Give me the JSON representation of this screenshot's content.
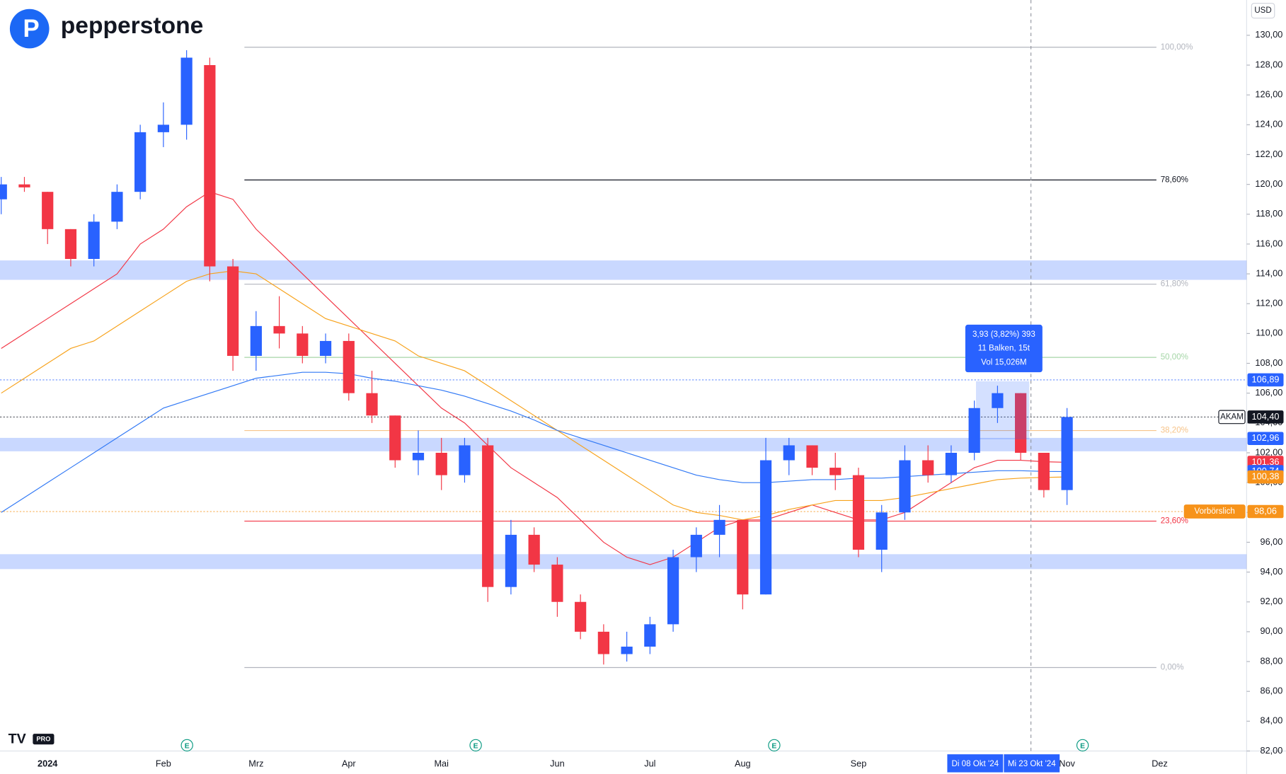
{
  "brand": "pepperstone",
  "currency": "USD",
  "platform_badge": "PRO",
  "chart_data": {
    "type": "candlestick",
    "symbol": "AKAM",
    "categories": [
      null,
      null,
      "2024",
      null,
      null,
      null,
      null,
      "Feb",
      null,
      null,
      null,
      "Mrz",
      null,
      null,
      null,
      "Apr",
      null,
      null,
      null,
      "Mai",
      null,
      null,
      null,
      null,
      "Jun",
      null,
      null,
      null,
      "Jul",
      null,
      null,
      null,
      "Aug",
      null,
      null,
      null,
      null,
      "Sep",
      null,
      null,
      null,
      null,
      null,
      null,
      null,
      null,
      "Nov",
      null,
      null,
      null,
      "Dez",
      null,
      null,
      null
    ],
    "open": [
      119,
      120,
      119.5,
      117,
      115,
      117.5,
      119.5,
      123.5,
      124,
      128,
      114.5,
      108.5,
      110.5,
      110,
      108.5,
      109.5,
      106,
      104.5,
      101.5,
      102,
      100.5,
      102.5,
      93,
      96.5,
      94.5,
      92,
      90,
      88.5,
      89,
      90.5,
      95,
      96.5,
      97.5,
      92.5,
      101.5,
      102.5,
      101,
      100.5,
      95.5,
      98,
      101.5,
      100.5,
      102,
      105,
      106,
      102,
      99.5,
      null,
      null,
      null,
      null,
      null,
      null,
      null
    ],
    "high": [
      120.5,
      120.5,
      119.5,
      117,
      118,
      120,
      124,
      125.5,
      129,
      128.5,
      115,
      111.5,
      112.5,
      110.5,
      110,
      110,
      107.5,
      104.5,
      103.5,
      103,
      103,
      103,
      97.5,
      97,
      95,
      92.5,
      90.5,
      90,
      91,
      95.5,
      97,
      98.5,
      97.5,
      103,
      103,
      102.5,
      102,
      101,
      98.5,
      102.5,
      102.5,
      102.5,
      105.5,
      106.5,
      106,
      102,
      105,
      null,
      null,
      null,
      null,
      null,
      null,
      null
    ],
    "low": [
      118,
      119.5,
      116,
      114.5,
      114.5,
      117,
      119,
      122.5,
      123,
      113.5,
      107.5,
      107.5,
      109,
      108,
      108,
      105.5,
      104,
      101,
      100.5,
      99.5,
      100,
      92,
      92.5,
      94,
      91,
      89.5,
      87.8,
      88,
      88.5,
      90,
      94,
      95,
      91.5,
      92.5,
      100.5,
      100.5,
      99.5,
      95,
      94,
      97.5,
      100,
      100,
      101.5,
      104,
      101.5,
      99,
      98.5,
      null,
      null,
      null,
      null,
      null,
      null,
      null
    ],
    "close": [
      120,
      119.8,
      117,
      115,
      117.5,
      119.5,
      123.5,
      124,
      128.5,
      114.5,
      108.5,
      110.5,
      110,
      108.5,
      109.5,
      106,
      104.5,
      101.5,
      102,
      100.5,
      102.5,
      93,
      96.5,
      94.5,
      92,
      90,
      88.5,
      89,
      90.5,
      95,
      96.5,
      97.5,
      92.5,
      101.5,
      102.5,
      101,
      100.5,
      95.5,
      98,
      101.5,
      100.5,
      102,
      105,
      106,
      102,
      99.5,
      104.4,
      null,
      null,
      null,
      null,
      null,
      null,
      null
    ],
    "up_color": "#2962ff",
    "down_color": "#f23645",
    "series": [
      {
        "color": "#f23645",
        "values": [
          109,
          110,
          111,
          112,
          113,
          114,
          116,
          117,
          118.5,
          119.5,
          119,
          117,
          115.5,
          114,
          112.5,
          111,
          109.5,
          108,
          106.5,
          105,
          104,
          102.5,
          101,
          100,
          99,
          97.5,
          96,
          95,
          94.5,
          95,
          96,
          97,
          97.5,
          97.5,
          98,
          98.5,
          98,
          97.5,
          97.5,
          98,
          99,
          100,
          101,
          101.5,
          101.5,
          101.4,
          101.36,
          null,
          null,
          null,
          null,
          null,
          null,
          null
        ]
      },
      {
        "color": "#f7a21b",
        "values": [
          106,
          107,
          108,
          109,
          109.5,
          110.5,
          111.5,
          112.5,
          113.5,
          114,
          114.2,
          114,
          113,
          112,
          111,
          110.5,
          110,
          109.5,
          108.5,
          108,
          107.5,
          106.5,
          105.5,
          104.5,
          103.5,
          102.5,
          101.5,
          100.5,
          99.5,
          98.5,
          98,
          97.8,
          97.5,
          97.8,
          98.2,
          98.5,
          98.8,
          98.8,
          98.8,
          99,
          99.3,
          99.6,
          99.9,
          100.2,
          100.3,
          100.35,
          100.38,
          null,
          null,
          null,
          null,
          null,
          null,
          null
        ]
      },
      {
        "color": "#3179f5",
        "values": [
          98,
          99,
          100,
          101,
          102,
          103,
          104,
          105,
          105.5,
          106,
          106.5,
          107,
          107.2,
          107.4,
          107.4,
          107.3,
          107,
          106.8,
          106.5,
          106.2,
          105.8,
          105.3,
          104.8,
          104.2,
          103.5,
          103,
          102.5,
          102,
          101.5,
          101,
          100.5,
          100.2,
          100,
          100,
          100.1,
          100.2,
          100.2,
          100.3,
          100.3,
          100.4,
          100.5,
          100.6,
          100.7,
          100.8,
          100.8,
          100.75,
          100.74,
          null,
          null,
          null,
          null,
          null,
          null,
          null
        ]
      }
    ],
    "ylim": [
      81.5,
      131
    ],
    "yticks": [
      {
        "value": 82,
        "label": "82,00"
      },
      {
        "value": 84,
        "label": "84,00"
      },
      {
        "value": 86,
        "label": "86,00"
      },
      {
        "value": 88,
        "label": "88,00"
      },
      {
        "value": 90,
        "label": "90,00"
      },
      {
        "value": 92,
        "label": "92,00"
      },
      {
        "value": 94,
        "label": "94,00"
      },
      {
        "value": 96,
        "label": "96,00"
      },
      {
        "value": 98,
        "label": "98,00"
      },
      {
        "value": 100,
        "label": "100,00"
      },
      {
        "value": 102,
        "label": "102,00"
      },
      {
        "value": 104,
        "label": "104,00"
      },
      {
        "value": 106,
        "label": "106,00"
      },
      {
        "value": 108,
        "label": "108,00"
      },
      {
        "value": 110,
        "label": "110,00"
      },
      {
        "value": 112,
        "label": "112,00"
      },
      {
        "value": 114,
        "label": "114,00"
      },
      {
        "value": 116,
        "label": "116,00"
      },
      {
        "value": 118,
        "label": "118,00"
      },
      {
        "value": 120,
        "label": "120,00"
      },
      {
        "value": 122,
        "label": "122,00"
      },
      {
        "value": 124,
        "label": "124,00"
      },
      {
        "value": 126,
        "label": "126,00"
      },
      {
        "value": 128,
        "label": "128,00"
      },
      {
        "value": 130,
        "label": "130,00"
      }
    ],
    "zones": [
      [
        113.6,
        114.9
      ],
      [
        102.1,
        103
      ],
      [
        94.2,
        95.2
      ]
    ],
    "fibonacci": {
      "low": 87.6,
      "high": 129.2,
      "levels": [
        {
          "value": 100,
          "label": "100,00%",
          "color": "#b2b5be"
        },
        {
          "value": 78.6,
          "label": "78,60%",
          "color": "#131722"
        },
        {
          "value": 61.8,
          "label": "61,80%",
          "color": "#b2b5be"
        },
        {
          "value": 50,
          "label": "50,00%",
          "color": "#a5d6a7"
        },
        {
          "value": 38.2,
          "label": "38,20%",
          "color": "#f7c48a"
        },
        {
          "value": 23.6,
          "label": "23,60%",
          "color": "#f23645"
        },
        {
          "value": 0,
          "label": "0,00%",
          "color": "#b2b5be"
        }
      ]
    },
    "price_labels": [
      {
        "value": 106.89,
        "label": "106,89",
        "color": "#2962ff",
        "line": true
      },
      {
        "name": "AKAM",
        "value": 104.4,
        "label": "104,40",
        "color": "#131722",
        "line": true
      },
      {
        "value": 102.96,
        "label": "102,96",
        "color": "#2962ff"
      },
      {
        "value": 101.36,
        "label": "101,36",
        "color": "#f23645"
      },
      {
        "value": 100.74,
        "label": "100,74",
        "color": "#2962ff"
      },
      {
        "value": 100.38,
        "label": "100,38",
        "color": "#f7931a"
      },
      {
        "name": "Vorbörslich",
        "value": 98.06,
        "label": "98,06",
        "color": "#f7931a",
        "line": true
      }
    ],
    "measurement": [
      "3,93 (3,82%) 393",
      "11 Balken, 15t",
      "Vol 15,026M"
    ],
    "date_labels": [
      "Di 08 Okt '24",
      "Mi 23 Okt '24"
    ],
    "events": [
      "E",
      "E",
      "E",
      "E"
    ]
  }
}
